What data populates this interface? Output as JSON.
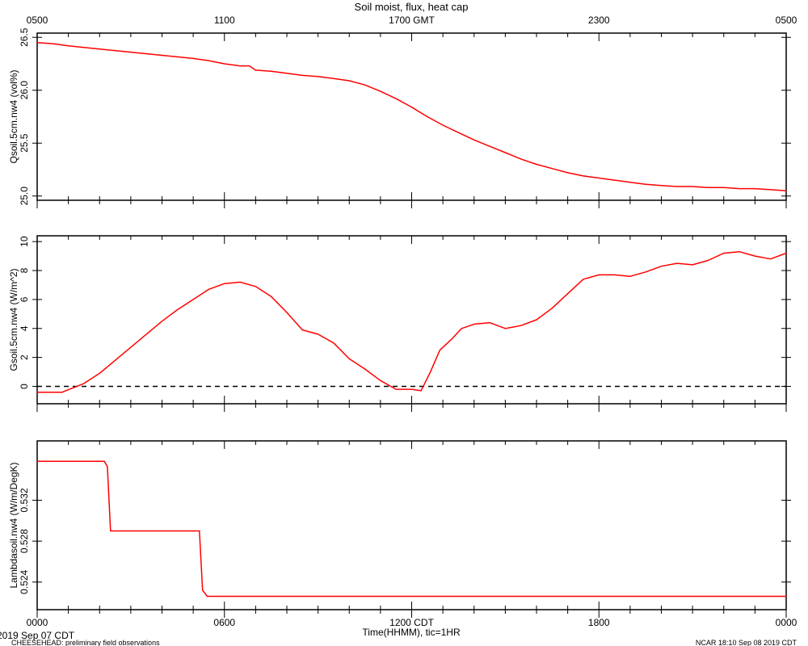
{
  "title": "Soil moist, flux, heat cap",
  "top_axis": {
    "labels": [
      "0500",
      "1100",
      "1700 GMT",
      "2300",
      "0500"
    ]
  },
  "bottom_axis": {
    "labels": [
      "0000",
      "0600",
      "1200 CDT",
      "1800",
      "0000"
    ],
    "xlabel": "Time(HHMM), tic=1HR"
  },
  "footer": {
    "date": "2019 Sep 07 CDT",
    "project": "CHEESEHEAD: preliminary field observations",
    "credit": "NCAR 18:10 Sep 08 2019 CDT"
  },
  "colors": {
    "series": "#ff0000",
    "axes": "#000000",
    "zero_line": "#000000"
  },
  "chart_data": [
    {
      "type": "line",
      "ylabel": "Qsoil.5cm.nw4 (vol%)",
      "xlim": [
        0,
        24
      ],
      "ylim": [
        24.96,
        26.54
      ],
      "yticks": [
        25.0,
        25.5,
        26.0,
        26.5
      ],
      "ytick_labels": [
        "25.0",
        "25.5",
        "26.0",
        "26.5"
      ],
      "series": [
        {
          "x": [
            0,
            0.5,
            1,
            2,
            3,
            4,
            5,
            5.5,
            6,
            6.5,
            6.8,
            7,
            7.5,
            8,
            8.5,
            9,
            9.5,
            10,
            10.5,
            11,
            11.5,
            12,
            12.5,
            13,
            13.5,
            14,
            14.5,
            15,
            15.5,
            16,
            16.5,
            17,
            17.5,
            18,
            18.5,
            19,
            19.5,
            20,
            20.5,
            21,
            21.5,
            22,
            22.5,
            23,
            23.5,
            24
          ],
          "y": [
            26.45,
            26.44,
            26.42,
            26.39,
            26.36,
            26.33,
            26.3,
            26.28,
            26.25,
            26.23,
            26.23,
            26.19,
            26.18,
            26.16,
            26.14,
            26.13,
            26.11,
            26.09,
            26.05,
            25.99,
            25.92,
            25.84,
            25.75,
            25.67,
            25.6,
            25.53,
            25.47,
            25.41,
            25.35,
            25.3,
            25.26,
            25.22,
            25.19,
            25.17,
            25.15,
            25.13,
            25.11,
            25.1,
            25.09,
            25.09,
            25.08,
            25.08,
            25.07,
            25.07,
            25.06,
            25.05
          ]
        }
      ]
    },
    {
      "type": "line",
      "ylabel": "Gsoil.5cm.nw4 (W/m^2)",
      "xlim": [
        0,
        24
      ],
      "ylim": [
        -1.2,
        10.4
      ],
      "yticks": [
        0,
        2,
        4,
        6,
        8,
        10
      ],
      "ytick_labels": [
        "0",
        "2",
        "4",
        "6",
        "8",
        "10"
      ],
      "zero_line": true,
      "series": [
        {
          "x": [
            0,
            0.8,
            1.5,
            2,
            2.5,
            3,
            3.5,
            4,
            4.5,
            5,
            5.5,
            6,
            6.5,
            7,
            7.5,
            8,
            8.5,
            9,
            9.5,
            10,
            10.5,
            11,
            11.5,
            12,
            12.3,
            12.6,
            12.9,
            13.3,
            13.6,
            14,
            14.5,
            15,
            15.5,
            16,
            16.5,
            17,
            17.5,
            18,
            18.5,
            19,
            19.5,
            20,
            20.5,
            21,
            21.5,
            22,
            22.5,
            23,
            23.5,
            24
          ],
          "y": [
            -0.4,
            -0.4,
            0.2,
            0.9,
            1.8,
            2.7,
            3.6,
            4.5,
            5.3,
            6,
            6.7,
            7.1,
            7.2,
            6.9,
            6.2,
            5.1,
            3.9,
            3.6,
            3,
            1.9,
            1.2,
            0.4,
            -0.2,
            -0.2,
            -0.3,
            1,
            2.5,
            3.3,
            4,
            4.3,
            4.4,
            4,
            4.2,
            4.6,
            5.4,
            6.4,
            7.4,
            7.7,
            7.7,
            7.6,
            7.9,
            8.3,
            8.5,
            8.4,
            8.7,
            9.2,
            9.3,
            9,
            8.8,
            9.2
          ]
        }
      ]
    },
    {
      "type": "line",
      "ylabel": "Lambdasoil.nw4 (W/m/DegK)",
      "xlim": [
        0,
        24
      ],
      "ylim": [
        0.5213,
        0.5378
      ],
      "yticks": [
        0.524,
        0.528,
        0.532
      ],
      "ytick_labels": [
        "0.524",
        "0.528",
        "0.532"
      ],
      "series": [
        {
          "x": [
            0,
            2.15,
            2.25,
            2.35,
            5.2,
            5.3,
            5.45,
            24
          ],
          "y": [
            0.5358,
            0.5358,
            0.5353,
            0.529,
            0.529,
            0.5232,
            0.5226,
            0.5226
          ]
        }
      ]
    }
  ]
}
